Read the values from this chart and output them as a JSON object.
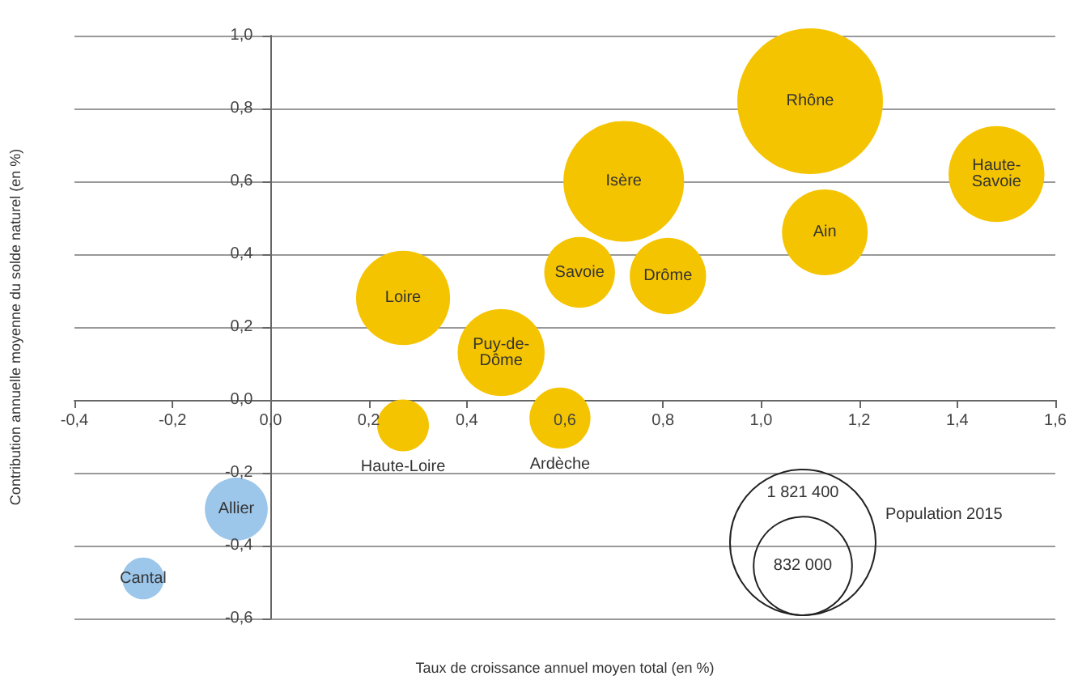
{
  "chart_data": {
    "type": "bubble",
    "xlabel": "Taux de croissance annuel moyen total (en %)",
    "ylabel": "Contribution annuelle moyenne du solde naturel (en %)",
    "legend_title": "Population 2015",
    "xlim": [
      -0.4,
      1.6
    ],
    "ylim": [
      -0.6,
      1.0
    ],
    "xticks": [
      {
        "value": -0.4,
        "label": "-0,4"
      },
      {
        "value": -0.2,
        "label": "-0,2"
      },
      {
        "value": 0,
        "label": "0,0"
      },
      {
        "value": 0.2,
        "label": "0,2"
      },
      {
        "value": 0.4,
        "label": "0,4"
      },
      {
        "value": 0.6,
        "label": "0,6"
      },
      {
        "value": 0.8,
        "label": "0,8"
      },
      {
        "value": 1.0,
        "label": "1,0"
      },
      {
        "value": 1.2,
        "label": "1,2"
      },
      {
        "value": 1.4,
        "label": "1,4"
      },
      {
        "value": 1.6,
        "label": "1,6"
      }
    ],
    "yticks": [
      {
        "value": -0.6,
        "label": "-0,6"
      },
      {
        "value": -0.4,
        "label": "-0,4"
      },
      {
        "value": -0.2,
        "label": "-0,2"
      },
      {
        "value": 0,
        "label": "0,0"
      },
      {
        "value": 0.2,
        "label": "0,2"
      },
      {
        "value": 0.4,
        "label": "0,4"
      },
      {
        "value": 0.6,
        "label": "0,6"
      },
      {
        "value": 0.8,
        "label": "0,8"
      },
      {
        "value": 1.0,
        "label": "1,0"
      }
    ],
    "size_legend": [
      {
        "value": 1821400,
        "label": "1 821 400"
      },
      {
        "value": 832000,
        "label": "832 000"
      }
    ],
    "grid": "y",
    "series": [
      {
        "name": "Rhône",
        "color": "#f5c400",
        "x": [
          1.1
        ],
        "values": [
          0.82
        ],
        "sizes": [
          1820000
        ]
      },
      {
        "name": "Haute-Savoie",
        "color": "#f5c400",
        "x": [
          1.48
        ],
        "values": [
          0.62
        ],
        "sizes": [
          790000
        ]
      },
      {
        "name": "Isère",
        "color": "#f5c400",
        "x": [
          0.72
        ],
        "values": [
          0.6
        ],
        "sizes": [
          1250000
        ]
      },
      {
        "name": "Ain",
        "color": "#f5c400",
        "x": [
          1.13
        ],
        "values": [
          0.46
        ],
        "sizes": [
          630000
        ]
      },
      {
        "name": "Savoie",
        "color": "#f5c400",
        "x": [
          0.63
        ],
        "values": [
          0.35
        ],
        "sizes": [
          430000
        ]
      },
      {
        "name": "Drôme",
        "color": "#f5c400",
        "x": [
          0.81
        ],
        "values": [
          0.34
        ],
        "sizes": [
          500000
        ]
      },
      {
        "name": "Loire",
        "color": "#f5c400",
        "x": [
          0.27
        ],
        "values": [
          0.28
        ],
        "sizes": [
          760000
        ]
      },
      {
        "name": "Puy-de-Dôme",
        "color": "#f5c400",
        "x": [
          0.47
        ],
        "values": [
          0.13
        ],
        "sizes": [
          650000
        ]
      },
      {
        "name": "Ardèche",
        "color": "#f5c400",
        "x": [
          0.59
        ],
        "values": [
          -0.05
        ],
        "sizes": [
          320000
        ]
      },
      {
        "name": "Haute-Loire",
        "color": "#f5c400",
        "x": [
          0.27
        ],
        "values": [
          -0.07
        ],
        "sizes": [
          230000
        ]
      },
      {
        "name": "Allier",
        "color": "#9cc6ea",
        "x": [
          -0.07
        ],
        "values": [
          -0.3
        ],
        "sizes": [
          340000
        ]
      },
      {
        "name": "Cantal",
        "color": "#9cc6ea",
        "x": [
          -0.26
        ],
        "values": [
          -0.49
        ],
        "sizes": [
          150000
        ]
      }
    ]
  }
}
